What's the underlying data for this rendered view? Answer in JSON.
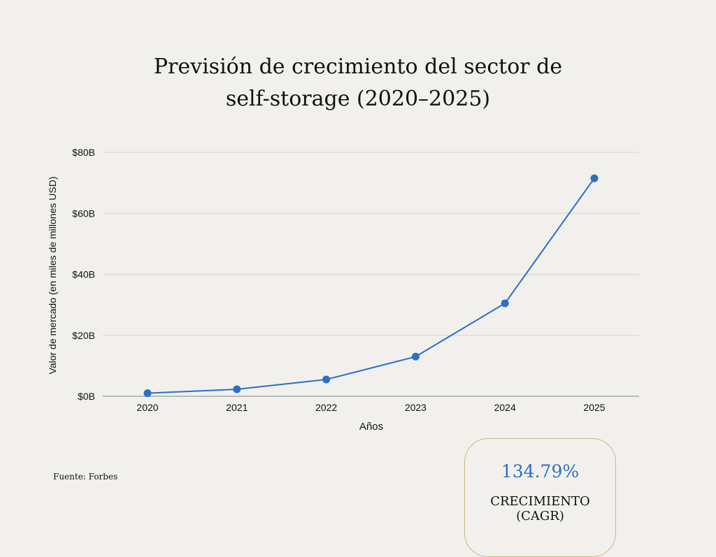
{
  "chart_data": {
    "type": "line",
    "title_lines": [
      "Previsión de crecimiento del sector de",
      "self-storage (2020–2025)"
    ],
    "xlabel": "Años",
    "ylabel": "Valor de mercado (en miles de millones USD)",
    "categories": [
      "2020",
      "2021",
      "2022",
      "2023",
      "2024",
      "2025"
    ],
    "series": [
      {
        "values": [
          1.0,
          2.3,
          5.5,
          13.0,
          30.5,
          71.5
        ]
      }
    ],
    "ylim": [
      0,
      80
    ],
    "yticks": [
      {
        "value": 0,
        "label": "$0B"
      },
      {
        "value": 20,
        "label": "$20B"
      },
      {
        "value": 40,
        "label": "$40B"
      },
      {
        "value": 60,
        "label": "$60B"
      },
      {
        "value": 80,
        "label": "$80B"
      }
    ],
    "grid": true,
    "line_color": "#2b6fc7"
  },
  "footer": {
    "source": "Fuente: Forbes"
  },
  "kpi": {
    "value": "134.79%",
    "label": "CRECIMIENTO\n(CAGR)"
  }
}
